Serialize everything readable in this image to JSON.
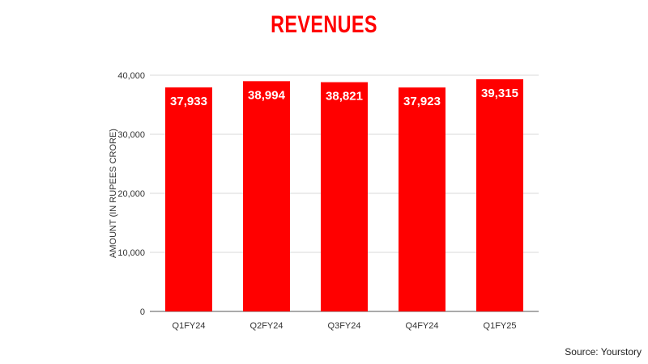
{
  "title": "REVENUES",
  "source": "Source: Yourstory",
  "colors": {
    "bar": "#ff0000",
    "title": "#ff0000",
    "grid": "#d9d9d9",
    "axis": "#555555",
    "data_label": "#ffffff"
  },
  "chart_data": {
    "type": "bar",
    "title": "REVENUES",
    "categories": [
      "Q1FY24",
      "Q2FY24",
      "Q3FY24",
      "Q4FY24",
      "Q1FY25"
    ],
    "values": [
      37933,
      38994,
      38821,
      37923,
      39315
    ],
    "value_labels": [
      "37,933",
      "38,994",
      "38,821",
      "37,923",
      "39,315"
    ],
    "xlabel": "",
    "ylabel": "AMOUNT (IN RUPEES CRORE)",
    "ylim": [
      0,
      40000
    ],
    "yticks": [
      0,
      10000,
      20000,
      30000,
      40000
    ],
    "ytick_labels": [
      "0",
      "10,000",
      "20,000",
      "30,000",
      "40,000"
    ],
    "grid": true,
    "legend": "none"
  }
}
